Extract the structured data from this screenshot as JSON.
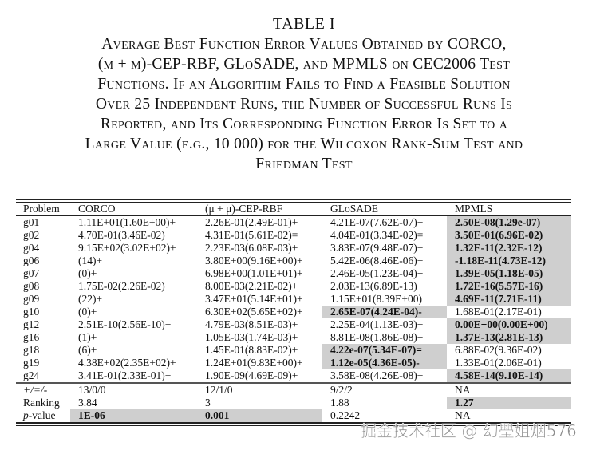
{
  "caption": {
    "title": "TABLE I",
    "lines": [
      "Average Best Function Error Values Obtained by CORCO,",
      "(μ + μ)-CEP-RBF, GLoSADE, and MPMLS on CEC2006 Test",
      "Functions. If an Algorithm Fails to Find a Feasible Solution",
      "Over 25 Independent Runs, the Number of Successful Runs Is",
      "Reported, and Its Corresponding Function Error Is Set to a",
      "Large Value (e.g., 10 000) for the Wilcoxon Rank-Sum Test and",
      "Friedman Test"
    ]
  },
  "table": {
    "headers": [
      "Problem",
      "CORCO",
      "(μ + μ)-CEP-RBF",
      "GLoSADE",
      "MPMLS"
    ],
    "rows": [
      [
        {
          "v": "g01"
        },
        {
          "v": "1.11E+01(1.60E+00)+"
        },
        {
          "v": "2.26E-01(2.49E-01)+"
        },
        {
          "v": "4.21E-07(7.62E-07)+"
        },
        {
          "v": "2.50E-08(1.29e-07)",
          "best": true
        }
      ],
      [
        {
          "v": "g02"
        },
        {
          "v": "4.70E-01(3.46E-02)+"
        },
        {
          "v": "4.31E-01(5.61E-02)="
        },
        {
          "v": "4.04E-01(3.34E-02)="
        },
        {
          "v": "3.50E-01(6.96E-02)",
          "best": true
        }
      ],
      [
        {
          "v": "g04"
        },
        {
          "v": "9.15E+02(3.02E+02)+"
        },
        {
          "v": "2.23E-03(6.08E-03)+"
        },
        {
          "v": "3.83E-07(9.48E-07)+"
        },
        {
          "v": "1.32E-11(2.32E-12)",
          "best": true
        }
      ],
      [
        {
          "v": "g06"
        },
        {
          "v": "(14)+"
        },
        {
          "v": "3.80E+00(9.16E+00)+"
        },
        {
          "v": "5.42E-06(8.46E-06)+"
        },
        {
          "v": "-1.18E-11(4.73E-12)",
          "best": true
        }
      ],
      [
        {
          "v": "g07"
        },
        {
          "v": "(0)+"
        },
        {
          "v": "6.98E+00(1.01E+01)+"
        },
        {
          "v": "2.46E-05(1.23E-04)+"
        },
        {
          "v": "1.39E-05(1.18E-05)",
          "best": true
        }
      ],
      [
        {
          "v": "g08"
        },
        {
          "v": "1.75E-02(2.26E-02)+"
        },
        {
          "v": "8.00E-03(2.21E-02)+"
        },
        {
          "v": "2.03E-13(6.89E-13)+"
        },
        {
          "v": "1.72E-16(5.57E-16)",
          "best": true
        }
      ],
      [
        {
          "v": "g09"
        },
        {
          "v": "(22)+"
        },
        {
          "v": "3.47E+01(5.14E+01)+"
        },
        {
          "v": "1.15E+01(8.39E+00)"
        },
        {
          "v": "4.69E-11(7.71E-11)",
          "best": true
        }
      ],
      [
        {
          "v": "g10"
        },
        {
          "v": "(0)+"
        },
        {
          "v": "6.30E+02(5.65E+02)+"
        },
        {
          "v": "2.65E-07(4.24E-04)-",
          "best": true
        },
        {
          "v": "1.68E-01(2.17E-01)"
        }
      ],
      [
        {
          "v": "g12"
        },
        {
          "v": "2.51E-10(2.56E-10)+"
        },
        {
          "v": "4.79E-03(8.51E-03)+"
        },
        {
          "v": "2.25E-04(1.13E-03)+"
        },
        {
          "v": "0.00E+00(0.00E+00)",
          "best": true
        }
      ],
      [
        {
          "v": "g16"
        },
        {
          "v": "(1)+"
        },
        {
          "v": "1.05E-03(1.74E-03)+"
        },
        {
          "v": "8.81E-08(1.86E-08)+"
        },
        {
          "v": "1.37E-13(2.81E-13)",
          "best": true
        }
      ],
      [
        {
          "v": "g18"
        },
        {
          "v": "(6)+"
        },
        {
          "v": "1.45E-01(8.83E-02)+"
        },
        {
          "v": "4.22e-07(5.34E-07)=",
          "best": true
        },
        {
          "v": "6.88E-02(9.36E-02)"
        }
      ],
      [
        {
          "v": "g19"
        },
        {
          "v": "4.38E+02(2.35E+02)+"
        },
        {
          "v": "1.24E+01(9.83E+00)+"
        },
        {
          "v": "1.12e-05(4.36E-05)-",
          "best": true
        },
        {
          "v": "1.33E-01(2.06E-01)"
        }
      ],
      [
        {
          "v": "g24"
        },
        {
          "v": "3.41E-01(2.33E-01)+"
        },
        {
          "v": "1.90E-09(4.69E-09)+"
        },
        {
          "v": "3.58E-08(4.26E-08)+"
        },
        {
          "v": "4.58E-14(9.10E-14)",
          "best": true
        }
      ]
    ],
    "summary": [
      [
        {
          "v": "+/=/-",
          "italic": true
        },
        {
          "v": "13/0/0"
        },
        {
          "v": "12/1/0"
        },
        {
          "v": "9/2/2"
        },
        {
          "v": "NA"
        }
      ],
      [
        {
          "v": "Ranking"
        },
        {
          "v": "3.84"
        },
        {
          "v": "3"
        },
        {
          "v": "1.88"
        },
        {
          "v": "1.27",
          "best": true
        }
      ],
      [
        {
          "v": "p-value",
          "pitalic": true
        },
        {
          "v": "1E-06",
          "best": true
        },
        {
          "v": "0.001",
          "best": true
        },
        {
          "v": "0.2242"
        },
        {
          "v": "NA"
        }
      ]
    ]
  },
  "watermark": "掘金技术社区 @ 幻璺姐烟576",
  "colors": {
    "highlight": "#cfcfcf",
    "text": "#111111"
  }
}
